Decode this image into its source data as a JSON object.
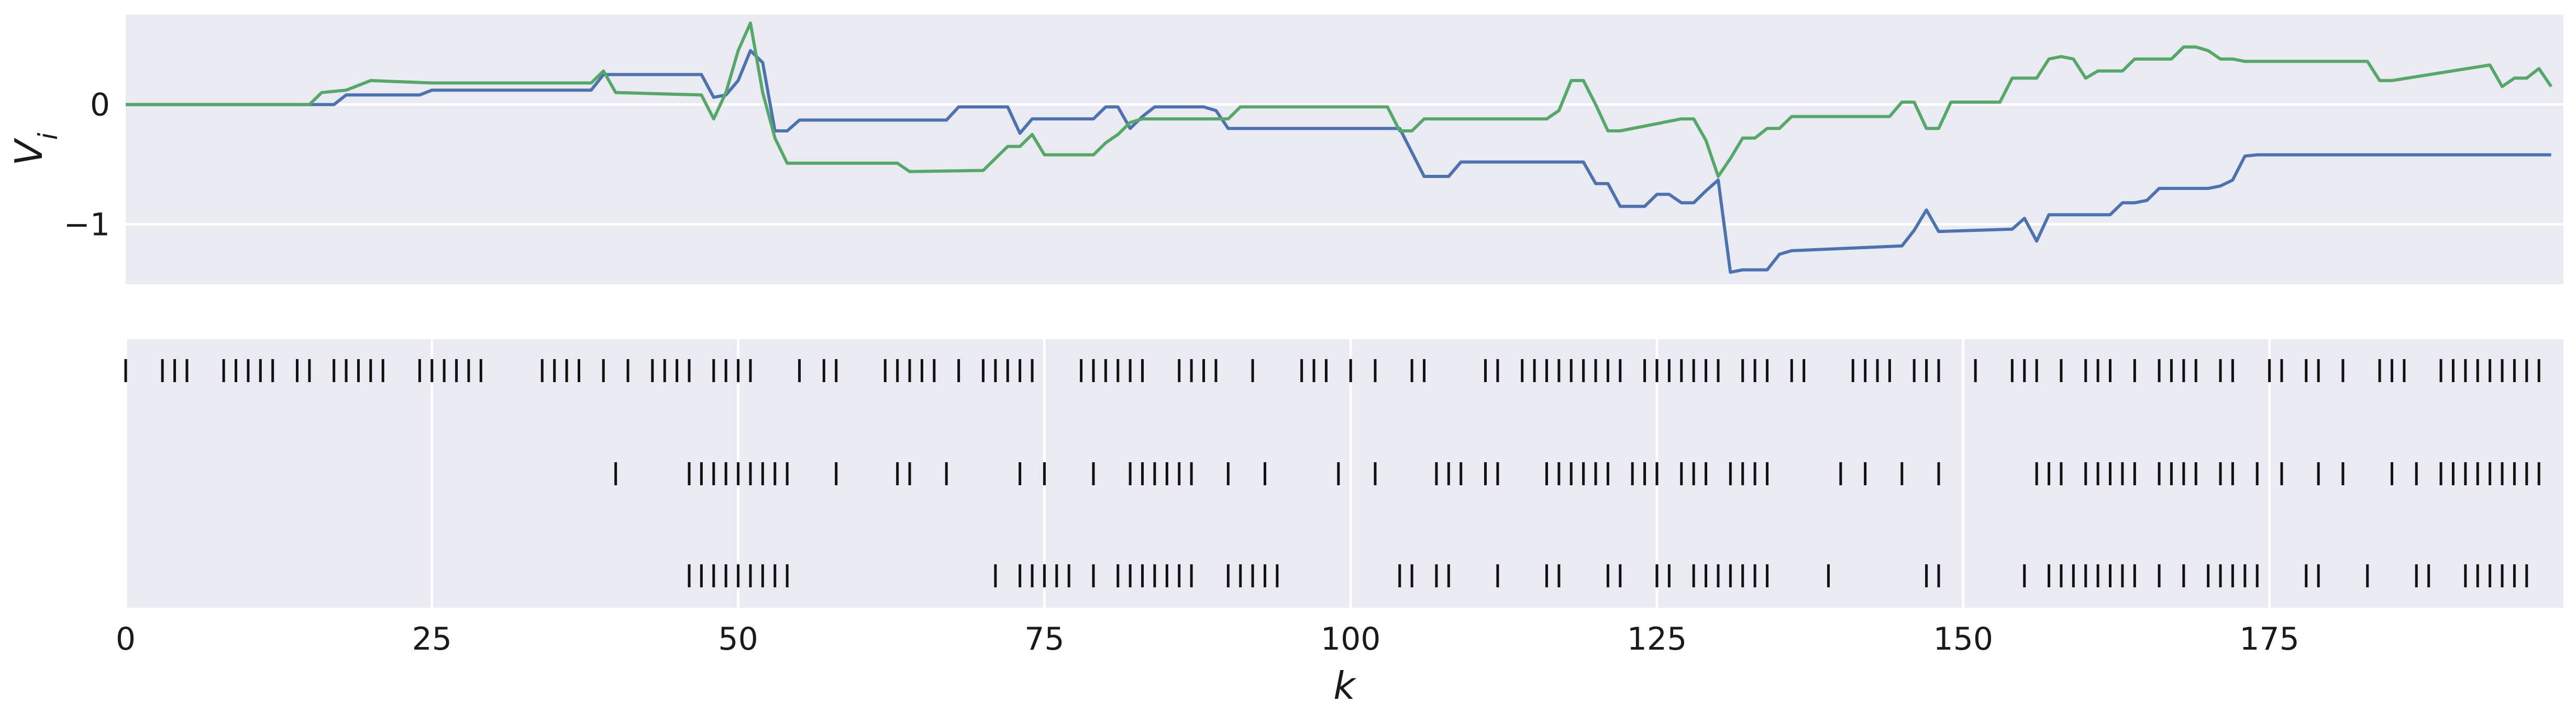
{
  "chart_data": [
    {
      "type": "line",
      "ylabel": "V_i",
      "xlabel": "",
      "xlim": [
        0,
        199
      ],
      "ylim": [
        -1.5,
        0.75
      ],
      "yticks": [
        0,
        -1
      ],
      "ytick_labels": [
        "0",
        "−1"
      ],
      "grid": true,
      "colors": {
        "blue": "#4c72b0",
        "green": "#55a868",
        "background": "#eaeaf2",
        "grid": "#ffffff"
      },
      "series": [
        {
          "color": "#4c72b0",
          "x": [
            0,
            15,
            17,
            18,
            24,
            25,
            38,
            39,
            40,
            47,
            48,
            49,
            50,
            51,
            52,
            53,
            54,
            55,
            67,
            68,
            71,
            72,
            73,
            74,
            79,
            80,
            81,
            82,
            83,
            84,
            85,
            86,
            87,
            88,
            89,
            90,
            91,
            104,
            106,
            107,
            108,
            109,
            110,
            111,
            119,
            120,
            121,
            122,
            123,
            124,
            125,
            126,
            127,
            128,
            129,
            130,
            131,
            132,
            133,
            134,
            135,
            136,
            145,
            146,
            147,
            148,
            154,
            155,
            156,
            157,
            158,
            162,
            163,
            164,
            165,
            166,
            167,
            168,
            169,
            170,
            171,
            172,
            173,
            174,
            175,
            193,
            194,
            195,
            196,
            197,
            198
          ],
          "y": [
            0,
            0,
            0,
            0.08,
            0.08,
            0.12,
            0.12,
            0.25,
            0.25,
            0.25,
            0.06,
            0.08,
            0.2,
            0.45,
            0.35,
            -0.22,
            -0.22,
            -0.13,
            -0.13,
            -0.02,
            -0.02,
            -0.02,
            -0.24,
            -0.12,
            -0.12,
            -0.02,
            -0.02,
            -0.2,
            -0.1,
            -0.02,
            -0.02,
            -0.02,
            -0.02,
            -0.02,
            -0.05,
            -0.2,
            -0.2,
            -0.2,
            -0.6,
            -0.6,
            -0.6,
            -0.48,
            -0.48,
            -0.48,
            -0.48,
            -0.66,
            -0.66,
            -0.85,
            -0.85,
            -0.85,
            -0.75,
            -0.75,
            -0.82,
            -0.82,
            -0.72,
            -0.63,
            -1.4,
            -1.38,
            -1.38,
            -1.38,
            -1.25,
            -1.22,
            -1.18,
            -1.05,
            -0.88,
            -1.06,
            -1.04,
            -0.95,
            -1.14,
            -0.92,
            -0.92,
            -0.92,
            -0.82,
            -0.82,
            -0.8,
            -0.7,
            -0.7,
            -0.7,
            -0.7,
            -0.7,
            -0.68,
            -0.63,
            -0.43,
            -0.42,
            -0.42,
            -0.42,
            -0.42,
            -0.42,
            -0.42,
            -0.42,
            -0.42
          ]
        },
        {
          "color": "#55a868",
          "x": [
            0,
            15,
            16,
            18,
            20,
            25,
            38,
            39,
            40,
            47,
            48,
            49,
            50,
            51,
            52,
            53,
            54,
            63,
            64,
            70,
            72,
            73,
            74,
            75,
            76,
            79,
            80,
            81,
            82,
            83,
            90,
            91,
            103,
            104,
            105,
            106,
            107,
            116,
            117,
            118,
            119,
            120,
            121,
            122,
            127,
            128,
            129,
            130,
            131,
            132,
            133,
            134,
            135,
            136,
            137,
            144,
            145,
            146,
            147,
            148,
            149,
            153,
            154,
            155,
            156,
            157,
            158,
            159,
            160,
            161,
            162,
            163,
            164,
            165,
            166,
            167,
            168,
            169,
            170,
            171,
            172,
            173,
            174,
            175,
            183,
            184,
            185,
            193,
            194,
            195,
            196,
            197,
            198
          ],
          "y": [
            0,
            0,
            0.1,
            0.12,
            0.2,
            0.18,
            0.18,
            0.28,
            0.1,
            0.08,
            -0.12,
            0.1,
            0.45,
            0.68,
            0.1,
            -0.28,
            -0.49,
            -0.49,
            -0.56,
            -0.55,
            -0.35,
            -0.35,
            -0.25,
            -0.42,
            -0.42,
            -0.42,
            -0.32,
            -0.25,
            -0.15,
            -0.12,
            -0.12,
            -0.02,
            -0.02,
            -0.22,
            -0.22,
            -0.12,
            -0.12,
            -0.12,
            -0.05,
            0.2,
            0.2,
            0,
            -0.22,
            -0.22,
            -0.12,
            -0.12,
            -0.3,
            -0.6,
            -0.45,
            -0.28,
            -0.28,
            -0.2,
            -0.2,
            -0.1,
            -0.1,
            -0.1,
            0.02,
            0.02,
            -0.2,
            -0.2,
            0.02,
            0.02,
            0.22,
            0.22,
            0.22,
            0.38,
            0.4,
            0.38,
            0.22,
            0.28,
            0.28,
            0.28,
            0.38,
            0.38,
            0.38,
            0.38,
            0.48,
            0.48,
            0.45,
            0.38,
            0.38,
            0.36,
            0.36,
            0.36,
            0.36,
            0.2,
            0.2,
            0.33,
            0.15,
            0.22,
            0.22,
            0.3,
            0.15
          ]
        }
      ]
    },
    {
      "type": "scatter",
      "marker": "vertical-tick",
      "xlabel": "k",
      "xlim": [
        0,
        199
      ],
      "xticks": [
        0,
        25,
        50,
        75,
        100,
        125,
        150,
        175
      ],
      "xtick_labels": [
        "0",
        "25",
        "50",
        "75",
        "100",
        "125",
        "150",
        "175"
      ],
      "grid": true,
      "rows": [
        {
          "events": [
            0,
            3,
            4,
            5,
            8,
            9,
            10,
            11,
            12,
            14,
            15,
            17,
            18,
            19,
            20,
            21,
            24,
            25,
            26,
            27,
            28,
            29,
            34,
            35,
            36,
            37,
            39,
            41,
            43,
            44,
            45,
            46,
            48,
            49,
            50,
            51,
            55,
            57,
            58,
            62,
            63,
            64,
            65,
            66,
            68,
            70,
            71,
            72,
            73,
            74,
            78,
            79,
            80,
            81,
            82,
            83,
            86,
            87,
            88,
            89,
            92,
            96,
            97,
            98,
            100,
            102,
            105,
            106,
            111,
            112,
            114,
            115,
            116,
            117,
            118,
            119,
            120,
            121,
            122,
            124,
            125,
            126,
            127,
            128,
            129,
            130,
            132,
            133,
            134,
            136,
            137,
            141,
            142,
            143,
            144,
            146,
            147,
            148,
            151,
            154,
            155,
            156,
            158,
            160,
            161,
            162,
            164,
            166,
            167,
            168,
            169,
            171,
            172,
            175,
            176,
            178,
            179,
            181,
            184,
            185,
            186,
            189,
            190,
            191,
            192,
            193,
            194,
            195,
            196,
            197
          ]
        },
        {
          "events": [
            40,
            46,
            47,
            48,
            49,
            50,
            51,
            52,
            53,
            54,
            58,
            63,
            64,
            67,
            73,
            75,
            79,
            82,
            83,
            84,
            85,
            86,
            87,
            90,
            93,
            99,
            102,
            107,
            108,
            109,
            111,
            112,
            116,
            117,
            118,
            119,
            120,
            121,
            123,
            124,
            125,
            127,
            128,
            129,
            131,
            132,
            133,
            134,
            140,
            142,
            145,
            148,
            156,
            157,
            158,
            160,
            161,
            162,
            163,
            164,
            166,
            167,
            168,
            169,
            171,
            172,
            174,
            176,
            179,
            181,
            185,
            187,
            189,
            190,
            191,
            192,
            193,
            194,
            195,
            196,
            197
          ]
        },
        {
          "events": [
            46,
            47,
            48,
            49,
            50,
            51,
            52,
            53,
            54,
            71,
            73,
            74,
            75,
            76,
            77,
            79,
            81,
            82,
            83,
            84,
            85,
            86,
            87,
            90,
            91,
            92,
            93,
            94,
            104,
            105,
            107,
            108,
            112,
            116,
            117,
            121,
            122,
            125,
            126,
            128,
            129,
            130,
            131,
            132,
            133,
            134,
            139,
            147,
            148,
            155,
            157,
            158,
            159,
            160,
            161,
            162,
            163,
            164,
            166,
            168,
            170,
            171,
            172,
            173,
            174,
            178,
            179,
            183,
            187,
            188,
            191,
            192,
            193,
            194,
            195,
            196
          ]
        }
      ]
    }
  ]
}
